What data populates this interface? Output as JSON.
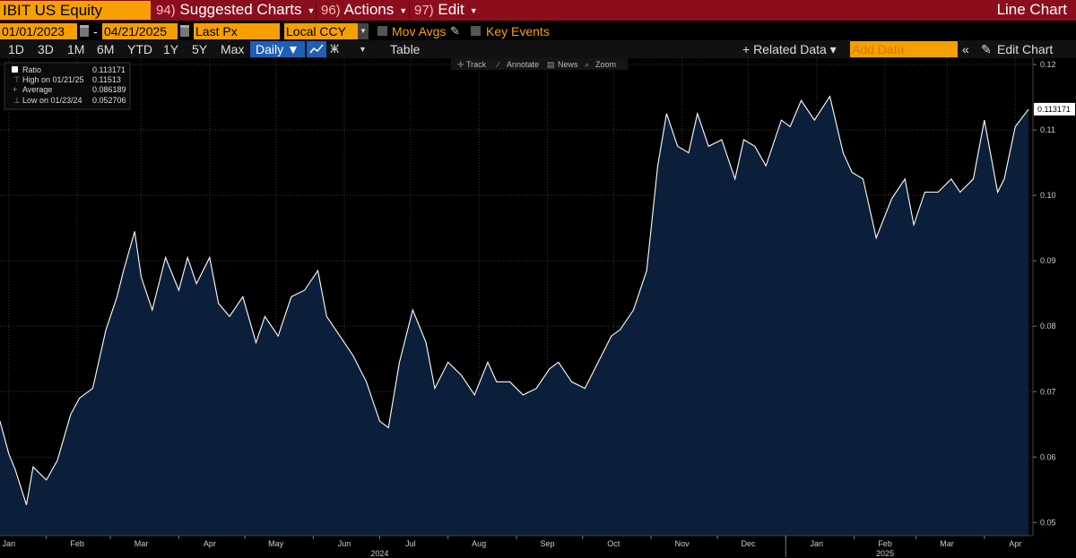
{
  "topbar": {
    "ticker": "IBIT US Equity",
    "menu": [
      {
        "num": "94)",
        "label": "Suggested Charts"
      },
      {
        "num": "96)",
        "label": "Actions"
      },
      {
        "num": "97)",
        "label": "Edit"
      }
    ],
    "chart_type": "Line Chart"
  },
  "controls": {
    "start_date": "01/01/2023",
    "end_date": "04/21/2025",
    "field": "Last Px",
    "currency": "Local CCY",
    "mov_avgs": "Mov Avgs",
    "key_events": "Key Events"
  },
  "toolbar": {
    "ranges": [
      "1D",
      "3D",
      "1M",
      "6M",
      "YTD",
      "1Y",
      "5Y",
      "Max"
    ],
    "frequency": "Daily ▼",
    "table": "Table",
    "related": "+ Related Data ▾",
    "add_data_placeholder": "Add Data",
    "edit_chart": "Edit Chart",
    "chart_tools": [
      "Track",
      "Annotate",
      "News",
      "Zoom"
    ]
  },
  "legend": {
    "rows": [
      {
        "label": "Ratio",
        "value": "0.113171"
      },
      {
        "label": "High on 01/21/25",
        "value": "0.11513"
      },
      {
        "label": "Average",
        "value": "0.086189"
      },
      {
        "label": "Low on 01/23/24",
        "value": "0.052706"
      }
    ]
  },
  "colors": {
    "line": "#ffffff",
    "area": "#0c1f3a",
    "background": "#000000",
    "topbar": "#8b0e1d",
    "accent": "#f6a000"
  },
  "chart_data": {
    "type": "area",
    "series": [
      {
        "name": "Ratio",
        "last": 0.113171
      }
    ],
    "x": [
      "2024-01-11",
      "2024-01-15",
      "2024-01-18",
      "2024-01-23",
      "2024-01-26",
      "2024-02-01",
      "2024-02-06",
      "2024-02-12",
      "2024-02-16",
      "2024-02-22",
      "2024-02-28",
      "2024-03-04",
      "2024-03-07",
      "2024-03-12",
      "2024-03-15",
      "2024-03-20",
      "2024-03-26",
      "2024-04-01",
      "2024-04-05",
      "2024-04-09",
      "2024-04-15",
      "2024-04-19",
      "2024-04-24",
      "2024-04-30",
      "2024-05-06",
      "2024-05-10",
      "2024-05-16",
      "2024-05-22",
      "2024-05-28",
      "2024-06-03",
      "2024-06-07",
      "2024-06-13",
      "2024-06-19",
      "2024-06-25",
      "2024-07-01",
      "2024-07-05",
      "2024-07-10",
      "2024-07-16",
      "2024-07-22",
      "2024-07-26",
      "2024-08-01",
      "2024-08-07",
      "2024-08-13",
      "2024-08-19",
      "2024-08-23",
      "2024-08-29",
      "2024-09-04",
      "2024-09-10",
      "2024-09-16",
      "2024-09-20",
      "2024-09-26",
      "2024-10-02",
      "2024-10-08",
      "2024-10-14",
      "2024-10-18",
      "2024-10-24",
      "2024-10-30",
      "2024-11-04",
      "2024-11-08",
      "2024-11-13",
      "2024-11-18",
      "2024-11-22",
      "2024-11-27",
      "2024-12-03",
      "2024-12-09",
      "2024-12-13",
      "2024-12-18",
      "2024-12-23",
      "2024-12-30",
      "2025-01-03",
      "2025-01-08",
      "2025-01-14",
      "2025-01-21",
      "2025-01-27",
      "2025-01-31",
      "2025-02-05",
      "2025-02-11",
      "2025-02-18",
      "2025-02-24",
      "2025-02-28",
      "2025-03-05",
      "2025-03-11",
      "2025-03-17",
      "2025-03-21",
      "2025-03-27",
      "2025-04-01",
      "2025-04-07",
      "2025-04-10",
      "2025-04-15",
      "2025-04-21"
    ],
    "y": [
      0.0655,
      0.0605,
      0.058,
      0.0527,
      0.0585,
      0.0565,
      0.0595,
      0.0665,
      0.069,
      0.0705,
      0.0795,
      0.0845,
      0.0885,
      0.0945,
      0.0875,
      0.0825,
      0.0905,
      0.0855,
      0.0905,
      0.0865,
      0.0905,
      0.0835,
      0.0815,
      0.0845,
      0.0775,
      0.0815,
      0.0785,
      0.0845,
      0.0855,
      0.0885,
      0.0815,
      0.0785,
      0.0755,
      0.0715,
      0.0655,
      0.0645,
      0.0745,
      0.0825,
      0.0775,
      0.0705,
      0.0745,
      0.0725,
      0.0695,
      0.0745,
      0.0715,
      0.0715,
      0.0695,
      0.0705,
      0.0735,
      0.0745,
      0.0715,
      0.0705,
      0.0745,
      0.0785,
      0.0795,
      0.0825,
      0.0885,
      0.1045,
      0.1125,
      0.1075,
      0.1065,
      0.1125,
      0.1075,
      0.1085,
      0.1025,
      0.1085,
      0.1075,
      0.1045,
      0.1115,
      0.1105,
      0.1145,
      0.1115,
      0.11513,
      0.1065,
      0.1035,
      0.1025,
      0.0935,
      0.0995,
      0.1025,
      0.0955,
      0.1005,
      0.1005,
      0.1025,
      0.1005,
      0.1025,
      0.1115,
      0.1005,
      0.1025,
      0.1105,
      0.113171
    ],
    "ylim": [
      0.048,
      0.12
    ],
    "yticks": [
      0.05,
      0.06,
      0.07,
      0.08,
      0.09,
      0.1,
      0.11,
      0.12
    ],
    "ytick_labels": [
      "0.05",
      "0.06",
      "0.07",
      "0.08",
      "0.09",
      "0.10",
      "0.11",
      "0.12"
    ],
    "xlim": [
      "2024-01-11",
      "2025-04-23"
    ],
    "xticks": [
      {
        "label": "Jan",
        "date": "2024-01-15"
      },
      {
        "label": "Feb",
        "date": "2024-02-15"
      },
      {
        "label": "Mar",
        "date": "2024-03-15"
      },
      {
        "label": "Apr",
        "date": "2024-04-15"
      },
      {
        "label": "May",
        "date": "2024-05-15"
      },
      {
        "label": "Jun",
        "date": "2024-06-15"
      },
      {
        "label": "Jul",
        "date": "2024-07-15"
      },
      {
        "label": "Aug",
        "date": "2024-08-15"
      },
      {
        "label": "Sep",
        "date": "2024-09-15"
      },
      {
        "label": "Oct",
        "date": "2024-10-15"
      },
      {
        "label": "Nov",
        "date": "2024-11-15"
      },
      {
        "label": "Dec",
        "date": "2024-12-15"
      },
      {
        "label": "Jan",
        "date": "2025-01-15"
      },
      {
        "label": "Feb",
        "date": "2025-02-15"
      },
      {
        "label": "Mar",
        "date": "2025-03-15"
      },
      {
        "label": "Apr",
        "date": "2025-04-15"
      }
    ],
    "year_labels": [
      {
        "label": "2024",
        "date": "2024-07-01"
      },
      {
        "label": "2025",
        "date": "2025-02-15"
      }
    ],
    "last_value_label": "0.113171",
    "grid": true
  }
}
